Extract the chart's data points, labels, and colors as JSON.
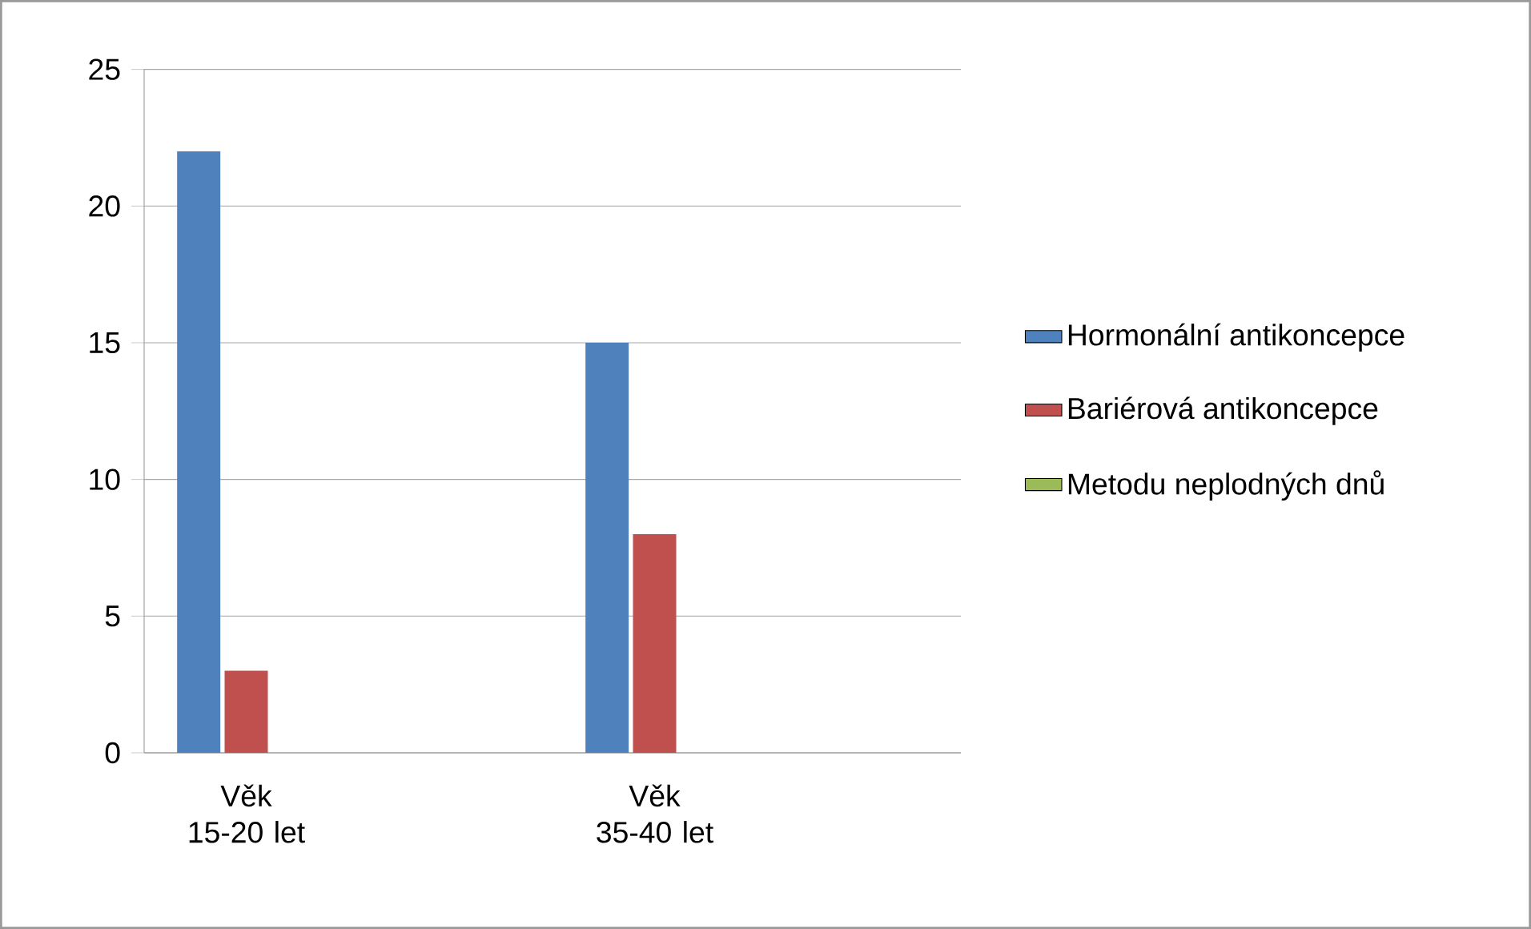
{
  "chart_data": {
    "type": "bar",
    "categories": [
      "Věk 15-20 let",
      null,
      "Věk 35-40 let",
      null
    ],
    "series": [
      {
        "name": "Hormonální antikoncepce",
        "color": "#4f81bd",
        "values": [
          22,
          null,
          15,
          null
        ]
      },
      {
        "name": "Bariérová antikoncepce",
        "color": "#c0504d",
        "values": [
          3,
          null,
          8,
          null
        ]
      },
      {
        "name": "Metodu neplodných dnů",
        "color": "#9bbb59",
        "values": [
          0,
          null,
          0,
          null
        ]
      }
    ],
    "ylim": [
      0,
      25
    ],
    "yticks": [
      0,
      5,
      10,
      15,
      20,
      25
    ],
    "grid": "y",
    "legend": "right"
  }
}
